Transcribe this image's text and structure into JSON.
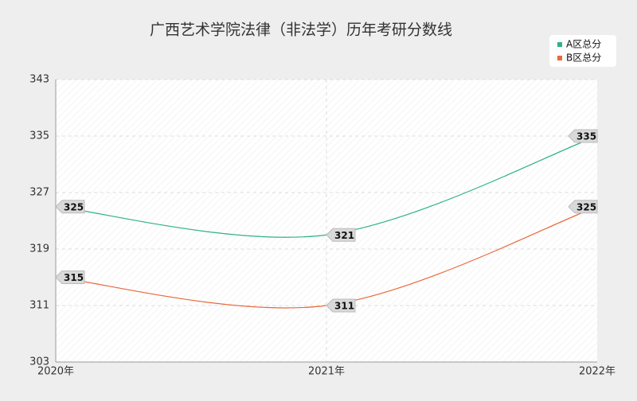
{
  "chart_data": {
    "type": "line",
    "title": "广西艺术学院法律（非法学）历年考研分数线",
    "categories": [
      "2020年",
      "2021年",
      "2022年"
    ],
    "series": [
      {
        "name": "A区总分",
        "color": "#2fb380",
        "values": [
          325,
          321,
          335
        ]
      },
      {
        "name": "B区总分",
        "color": "#e8693c",
        "values": [
          315,
          311,
          325
        ]
      }
    ],
    "ylim": [
      303,
      343
    ],
    "yticks": [
      303,
      311,
      319,
      327,
      335,
      343
    ],
    "grid": true,
    "legend": "top-right"
  }
}
